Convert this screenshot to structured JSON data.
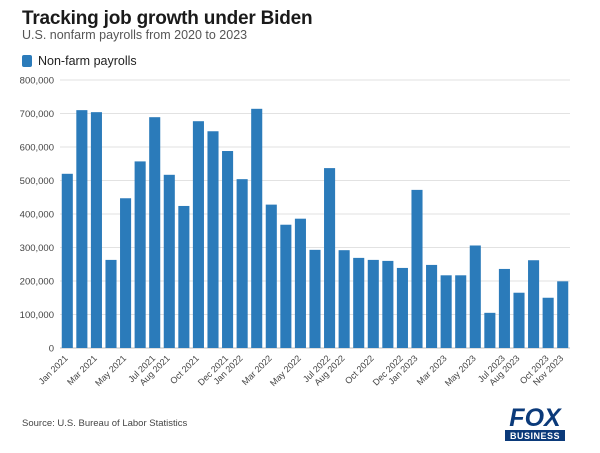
{
  "title": "Tracking job growth under Biden",
  "subtitle": "U.S. nonfarm payrolls from 2020 to 2023",
  "source": "Source: U.S. Bureau of Labor Statistics",
  "logo": {
    "brand_top": "FOX",
    "brand_bottom": "BUSINESS"
  },
  "colors": {
    "bar": "#2b7bba",
    "grid": "#e2e2e2",
    "axis": "#bdbdbd",
    "logo": "#0b3a7a"
  },
  "chart_data": {
    "type": "bar",
    "title": "Tracking job growth under Biden",
    "xlabel": "",
    "ylabel": "",
    "ylim": [
      0,
      800000
    ],
    "yticks": [
      0,
      100000,
      200000,
      300000,
      400000,
      500000,
      600000,
      700000,
      800000
    ],
    "ytick_labels": [
      "0",
      "100,000",
      "200,000",
      "300,000",
      "400,000",
      "500,000",
      "600,000",
      "700,000",
      "800,000"
    ],
    "legend": [
      "Non-farm payrolls"
    ],
    "categories": [
      "Jan 2021",
      "Feb 2021",
      "Mar 2021",
      "Apr 2021",
      "May 2021",
      "Jun 2021",
      "Jul 2021",
      "Aug 2021",
      "Sep 2021",
      "Oct 2021",
      "Nov 2021",
      "Dec 2021",
      "Jan 2022",
      "Feb 2022",
      "Mar 2022",
      "Apr 2022",
      "May 2022",
      "Jun 2022",
      "Jul 2022",
      "Aug 2022",
      "Sep 2022",
      "Oct 2022",
      "Nov 2022",
      "Dec 2022",
      "Jan 2023",
      "Feb 2023",
      "Mar 2023",
      "Apr 2023",
      "May 2023",
      "Jun 2023",
      "Jul 2023",
      "Aug 2023",
      "Sep 2023",
      "Oct 2023",
      "Nov 2023"
    ],
    "xtick_labels": [
      "Jan 2021",
      "Mar 2021",
      "May 2021",
      "Jul 2021",
      "Aug 2021",
      "Oct 2021",
      "Dec 2021",
      "Jan 2022",
      "Mar 2022",
      "May 2022",
      "Jul 2022",
      "Aug 2022",
      "Oct 2022",
      "Dec 2022",
      "Jan 2023",
      "Mar 2023",
      "May 2023",
      "Jul 2023",
      "Aug 2023",
      "Oct 2023",
      "Nov 2023"
    ],
    "xtick_indices": [
      0,
      2,
      4,
      6,
      7,
      9,
      11,
      12,
      14,
      16,
      18,
      19,
      21,
      23,
      24,
      26,
      28,
      30,
      31,
      33,
      34
    ],
    "series": [
      {
        "name": "Non-farm payrolls",
        "values": [
          520000,
          710000,
          704000,
          263000,
          447000,
          557000,
          689000,
          517000,
          424000,
          677000,
          647000,
          588000,
          504000,
          714000,
          428000,
          368000,
          386000,
          293000,
          537000,
          292000,
          269000,
          263000,
          260000,
          239000,
          472000,
          248000,
          217000,
          217000,
          306000,
          105000,
          236000,
          165000,
          262000,
          150000,
          199000
        ]
      }
    ]
  }
}
